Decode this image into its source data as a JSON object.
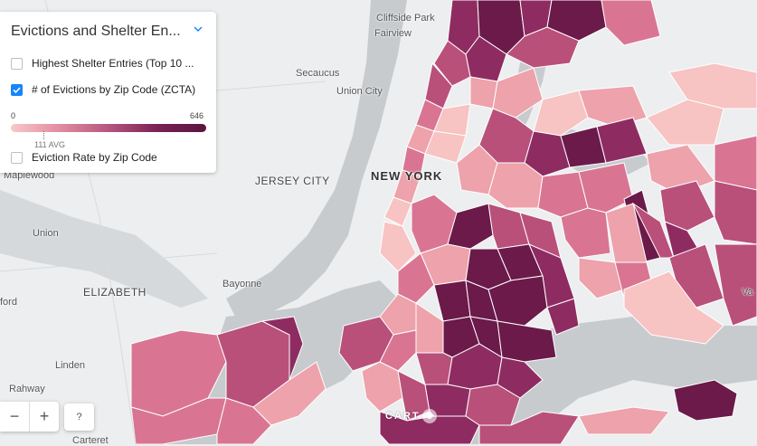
{
  "panel": {
    "title": "Evictions and Shelter En...",
    "layers": [
      {
        "label": "Highest Shelter Entries (Top 10 ...",
        "checked": false
      },
      {
        "label": "# of Evictions by Zip Code (ZCTA)",
        "checked": true
      },
      {
        "label": "Eviction Rate by Zip Code",
        "checked": false
      }
    ],
    "legend": {
      "min": "0",
      "max": "646",
      "avg": "111 AVG"
    }
  },
  "colors": {
    "c1": "#f8c3c3",
    "c2": "#eea2ab",
    "c3": "#d97592",
    "c4": "#b9507a",
    "c5": "#8e2c62",
    "c6": "#6b1a4a",
    "water": "#c8cbce",
    "land": "#eceeef",
    "accent": "#1785fb"
  },
  "places": {
    "cliffside_park": "Cliffside Park",
    "fairview": "Fairview",
    "secaucus": "Secaucus",
    "union_city": "Union City",
    "new_york": "NEW YORK",
    "jersey_city": "JERSEY CITY",
    "maplewood": "Maplewood",
    "union": "Union",
    "elizabeth": "ELIZABETH",
    "bayonne": "Bayonne",
    "ford": "ford",
    "linden": "Linden",
    "rahway": "Rahway",
    "carteret": "Carteret",
    "va": "Va"
  },
  "controls": {
    "zoom_out": "−",
    "zoom_in": "+",
    "help": "?"
  },
  "attribution": {
    "left": "CART",
    "right": ""
  }
}
